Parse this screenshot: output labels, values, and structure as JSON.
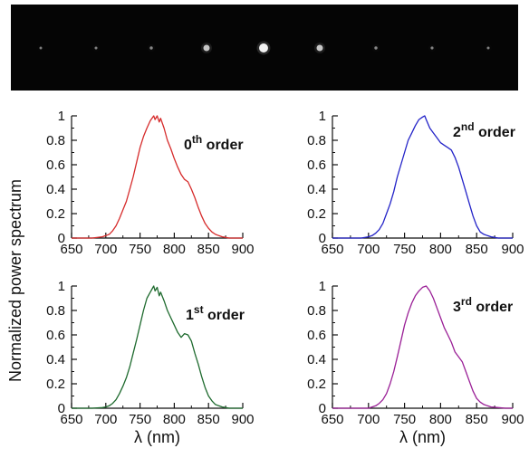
{
  "ylabel": "Normalized power spectrum",
  "colors": {
    "background": "#ffffff",
    "spot_strip": "#050505",
    "axis": "#111111"
  },
  "spots": [
    0.06,
    0.08,
    0.12,
    0.55,
    0.9,
    0.55,
    0.12,
    0.09,
    0.07
  ],
  "chart_data": [
    {
      "type": "line",
      "order_label": {
        "main": "0",
        "sup": "th",
        "tail": " order"
      },
      "xlabel": "",
      "xlim": [
        650,
        900
      ],
      "ylim": [
        0,
        1
      ],
      "xticks": [
        "650",
        "700",
        "750",
        "800",
        "850",
        "900"
      ],
      "yticks": [
        "0",
        "0.2",
        "0.4",
        "0.6",
        "0.8",
        "1"
      ],
      "series": [
        {
          "color": "#d62b2b",
          "x": [
            650,
            680,
            695,
            700,
            705,
            710,
            715,
            720,
            725,
            730,
            735,
            740,
            745,
            750,
            755,
            760,
            765,
            770,
            772,
            775,
            778,
            780,
            785,
            790,
            795,
            800,
            805,
            810,
            815,
            820,
            825,
            830,
            835,
            840,
            845,
            850,
            855,
            860,
            865,
            870,
            875,
            880,
            890,
            900
          ],
          "y": [
            0,
            0,
            0.01,
            0.02,
            0.03,
            0.06,
            0.1,
            0.16,
            0.23,
            0.3,
            0.4,
            0.5,
            0.62,
            0.74,
            0.83,
            0.9,
            0.96,
            1.0,
            0.97,
            1.0,
            0.95,
            0.98,
            0.9,
            0.8,
            0.73,
            0.65,
            0.58,
            0.52,
            0.48,
            0.46,
            0.4,
            0.33,
            0.25,
            0.18,
            0.12,
            0.08,
            0.05,
            0.03,
            0.02,
            0.01,
            0.005,
            0,
            0,
            0
          ]
        }
      ]
    },
    {
      "type": "line",
      "order_label": {
        "main": "2",
        "sup": "nd",
        "tail": " order"
      },
      "xlabel": "",
      "xlim": [
        650,
        900
      ],
      "ylim": [
        0,
        1
      ],
      "xticks": [
        "650",
        "700",
        "750",
        "800",
        "850",
        "900"
      ],
      "yticks": [
        "0",
        "0.2",
        "0.4",
        "0.6",
        "0.8",
        "1"
      ],
      "series": [
        {
          "color": "#2323c8",
          "x": [
            650,
            690,
            700,
            705,
            710,
            715,
            720,
            725,
            730,
            735,
            740,
            745,
            750,
            755,
            760,
            765,
            770,
            775,
            778,
            780,
            785,
            790,
            795,
            800,
            805,
            810,
            815,
            820,
            825,
            830,
            835,
            840,
            845,
            850,
            855,
            860,
            865,
            870,
            875,
            880,
            890,
            900
          ],
          "y": [
            0,
            0,
            0.01,
            0.02,
            0.04,
            0.07,
            0.12,
            0.2,
            0.28,
            0.38,
            0.5,
            0.6,
            0.7,
            0.8,
            0.86,
            0.92,
            0.97,
            0.99,
            1.0,
            0.97,
            0.9,
            0.86,
            0.82,
            0.78,
            0.76,
            0.74,
            0.72,
            0.66,
            0.58,
            0.48,
            0.38,
            0.28,
            0.18,
            0.1,
            0.05,
            0.03,
            0.02,
            0.01,
            0.005,
            0,
            0,
            0
          ]
        }
      ]
    },
    {
      "type": "line",
      "order_label": {
        "main": "1",
        "sup": "st",
        "tail": " order"
      },
      "xlabel": "λ (nm)",
      "xlim": [
        650,
        900
      ],
      "ylim": [
        0,
        1
      ],
      "xticks": [
        "650",
        "700",
        "750",
        "800",
        "850",
        "900"
      ],
      "yticks": [
        "0",
        "0.2",
        "0.4",
        "0.6",
        "0.8",
        "1"
      ],
      "series": [
        {
          "color": "#1e6a2e",
          "x": [
            650,
            680,
            695,
            700,
            705,
            710,
            715,
            720,
            725,
            730,
            735,
            740,
            745,
            750,
            755,
            760,
            765,
            770,
            772,
            775,
            778,
            780,
            785,
            790,
            795,
            800,
            805,
            810,
            815,
            820,
            825,
            830,
            835,
            840,
            845,
            850,
            855,
            860,
            865,
            870,
            875,
            880,
            890,
            900
          ],
          "y": [
            0,
            0,
            0.005,
            0.01,
            0.02,
            0.04,
            0.07,
            0.12,
            0.18,
            0.25,
            0.34,
            0.45,
            0.56,
            0.68,
            0.8,
            0.9,
            0.95,
            1.0,
            0.96,
            0.99,
            0.92,
            0.95,
            0.88,
            0.8,
            0.74,
            0.68,
            0.62,
            0.58,
            0.61,
            0.6,
            0.55,
            0.45,
            0.36,
            0.26,
            0.17,
            0.1,
            0.06,
            0.03,
            0.02,
            0.01,
            0.005,
            0,
            0,
            0
          ]
        }
      ]
    },
    {
      "type": "line",
      "order_label": {
        "main": "3",
        "sup": "rd",
        "tail": " order"
      },
      "xlabel": "λ (nm)",
      "xlim": [
        650,
        900
      ],
      "ylim": [
        0,
        1
      ],
      "xticks": [
        "650",
        "700",
        "750",
        "800",
        "850",
        "900"
      ],
      "yticks": [
        "0",
        "0.2",
        "0.4",
        "0.6",
        "0.8",
        "1"
      ],
      "series": [
        {
          "color": "#9a1f96",
          "x": [
            650,
            700,
            705,
            710,
            715,
            720,
            725,
            730,
            735,
            740,
            745,
            750,
            755,
            760,
            765,
            770,
            775,
            780,
            785,
            790,
            795,
            800,
            805,
            810,
            815,
            820,
            825,
            830,
            835,
            840,
            845,
            850,
            855,
            860,
            865,
            870,
            880,
            890,
            900
          ],
          "y": [
            0,
            0,
            0.01,
            0.02,
            0.04,
            0.07,
            0.12,
            0.2,
            0.3,
            0.42,
            0.55,
            0.68,
            0.78,
            0.86,
            0.92,
            0.96,
            0.99,
            1.0,
            0.96,
            0.9,
            0.82,
            0.74,
            0.66,
            0.6,
            0.54,
            0.46,
            0.42,
            0.38,
            0.3,
            0.22,
            0.14,
            0.08,
            0.05,
            0.03,
            0.02,
            0.01,
            0.005,
            0,
            0
          ]
        }
      ]
    }
  ]
}
